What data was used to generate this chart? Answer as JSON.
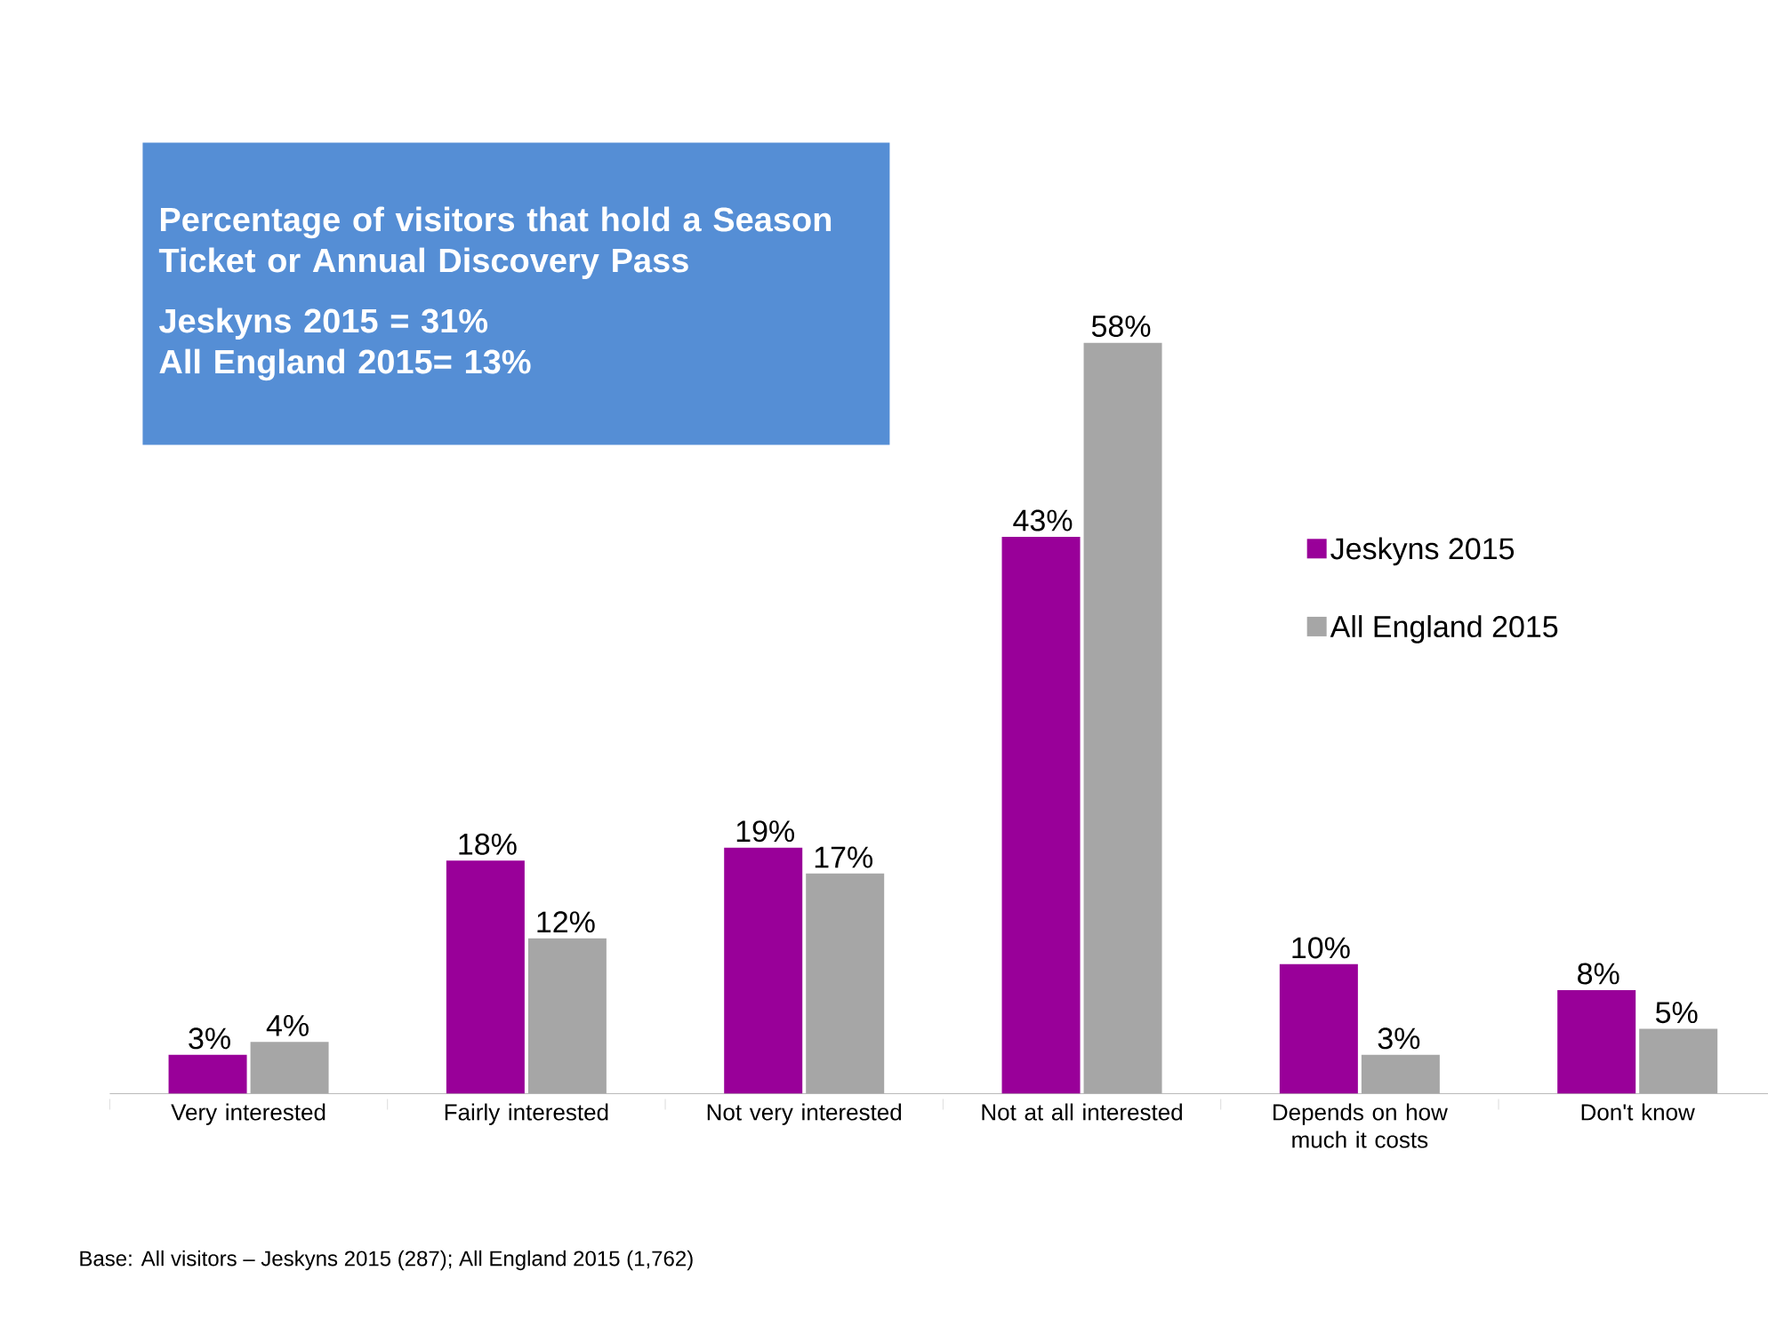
{
  "chart_data": {
    "type": "bar",
    "title": "Percentage of visitors that hold a Season Ticket or Annual Discovery Pass",
    "categories": [
      "Very interested",
      "Fairly interested",
      "Not very interested",
      "Not at all interested",
      "Depends on how much it costs",
      "Don't know"
    ],
    "series": [
      {
        "name": "Jeskyns 2015",
        "color": "#990099",
        "values": [
          3,
          18,
          19,
          43,
          10,
          8
        ],
        "value_labels": [
          "3%",
          "18%",
          "19%",
          "43%",
          "10%",
          "8%"
        ]
      },
      {
        "name": "All England 2015",
        "color": "#a6a6a6",
        "values": [
          4,
          12,
          17,
          58,
          3,
          5
        ],
        "value_labels": [
          "4%",
          "12%",
          "17%",
          "58%",
          "3%",
          "5%"
        ]
      }
    ],
    "annotations": [
      "Jeskyns 2015 = 31%",
      "All England 2015= 13%",
      "Base: All visitors – Jeskyns 2015 (287); All England 2015 (1,762)"
    ],
    "legend": "right"
  }
}
